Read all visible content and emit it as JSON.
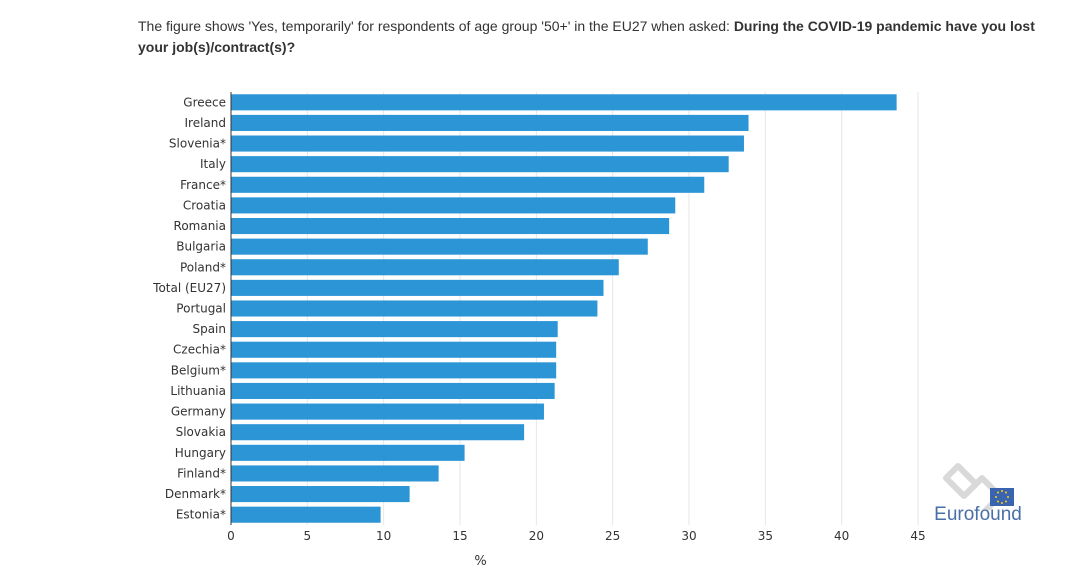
{
  "caption": {
    "prefix": "The figure shows 'Yes, temporarily' for respondents of age group '50+' in the EU27 when asked: ",
    "question": "During the COVID-19 pandemic have you lost your job(s)/contract(s)?"
  },
  "logo": {
    "text": "Eurofound"
  },
  "colors": {
    "bar": "#2b95d6",
    "grid": "#e6e6e6",
    "axis": "#333333"
  },
  "chart_data": {
    "type": "bar",
    "orientation": "horizontal",
    "categories": [
      "Greece",
      "Ireland",
      "Slovenia*",
      "Italy",
      "France*",
      "Croatia",
      "Romania",
      "Bulgaria",
      "Poland*",
      "Total (EU27)",
      "Portugal",
      "Spain",
      "Czechia*",
      "Belgium*",
      "Lithuania",
      "Germany",
      "Slovakia",
      "Hungary",
      "Finland*",
      "Denmark*",
      "Estonia*"
    ],
    "values": [
      43.6,
      33.9,
      33.6,
      32.6,
      31.0,
      29.1,
      28.7,
      27.3,
      25.4,
      24.4,
      24.0,
      21.4,
      21.3,
      21.3,
      21.2,
      20.5,
      19.2,
      15.3,
      13.6,
      11.7,
      9.8
    ],
    "xlabel": "%",
    "ylabel": "",
    "xlim": [
      0,
      45
    ],
    "xticks": [
      "0",
      "5",
      "10",
      "15",
      "20",
      "25",
      "30",
      "35",
      "40",
      "45"
    ],
    "grid": true,
    "legend": "none"
  }
}
